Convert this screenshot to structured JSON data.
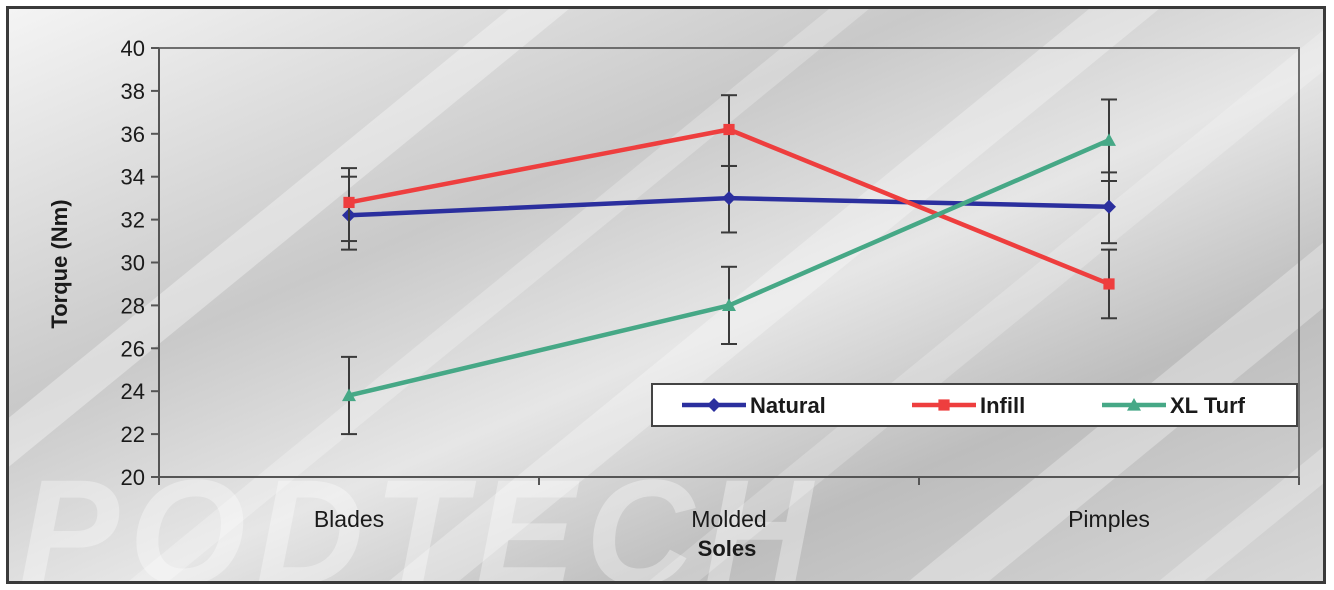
{
  "chart_data": {
    "type": "line",
    "title": "",
    "xlabel": "Soles",
    "ylabel": "Torque (Nm)",
    "categories": [
      "Blades",
      "Molded",
      "Pimples"
    ],
    "ylim": [
      20,
      40
    ],
    "yticks": [
      20,
      22,
      24,
      26,
      28,
      30,
      32,
      34,
      36,
      38,
      40
    ],
    "grid": false,
    "legend_position": "bottom-right",
    "series": [
      {
        "name": "Natural",
        "color": "#2b2f9e",
        "marker": "diamond",
        "values": [
          32.2,
          33.0,
          32.6
        ],
        "err_low": [
          30.6,
          31.4,
          30.9
        ],
        "err_high": [
          34.0,
          34.5,
          34.2
        ]
      },
      {
        "name": "Infill",
        "color": "#ee3e3e",
        "marker": "square",
        "values": [
          32.8,
          36.2,
          29.0
        ],
        "err_low": [
          31.0,
          34.5,
          27.4
        ],
        "err_high": [
          34.4,
          37.8,
          30.6
        ]
      },
      {
        "name": "XL Turf",
        "color": "#46a886",
        "marker": "triangle",
        "values": [
          23.8,
          28.0,
          35.7
        ],
        "err_low": [
          22.0,
          26.2,
          33.8
        ],
        "err_high": [
          25.6,
          29.8,
          37.6
        ]
      }
    ],
    "watermark": "PODTECH"
  }
}
